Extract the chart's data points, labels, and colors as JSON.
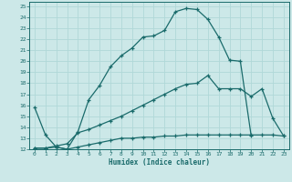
{
  "xlabel": "Humidex (Indice chaleur)",
  "bg_color": "#cce8e8",
  "line_color": "#1a6b6b",
  "grid_color": "#b0d8d8",
  "xlim": [
    -0.5,
    23.5
  ],
  "ylim": [
    12,
    25.4
  ],
  "xticks": [
    0,
    1,
    2,
    3,
    4,
    5,
    6,
    7,
    8,
    9,
    10,
    11,
    12,
    13,
    14,
    15,
    16,
    17,
    18,
    19,
    20,
    21,
    22,
    23
  ],
  "yticks": [
    12,
    13,
    14,
    15,
    16,
    17,
    18,
    19,
    20,
    21,
    22,
    23,
    24,
    25
  ],
  "line1_x": [
    0,
    1,
    2,
    3,
    4,
    5,
    6,
    7,
    8,
    9,
    10,
    11,
    12,
    13,
    14,
    15,
    16,
    17,
    18,
    19,
    20
  ],
  "line1_y": [
    15.8,
    13.3,
    12.2,
    12.0,
    13.6,
    16.5,
    17.8,
    19.5,
    20.5,
    21.2,
    22.2,
    22.3,
    22.8,
    24.5,
    24.8,
    24.7,
    23.8,
    22.2,
    20.1,
    20.0,
    13.2
  ],
  "line2_x": [
    0,
    1,
    2,
    3,
    4,
    5,
    6,
    7,
    8,
    9,
    10,
    11,
    12,
    13,
    14,
    15,
    16,
    17,
    18,
    19,
    20,
    21,
    22,
    23
  ],
  "line2_y": [
    12.1,
    12.1,
    12.2,
    12.0,
    12.2,
    12.4,
    12.6,
    12.8,
    13.0,
    13.0,
    13.1,
    13.1,
    13.2,
    13.2,
    13.3,
    13.3,
    13.3,
    13.3,
    13.3,
    13.3,
    13.3,
    13.3,
    13.3,
    13.2
  ],
  "line3_x": [
    0,
    1,
    2,
    3,
    4,
    5,
    6,
    7,
    8,
    9,
    10,
    11,
    12,
    13,
    14,
    15,
    16,
    17,
    18,
    19,
    20,
    21,
    22,
    23
  ],
  "line3_y": [
    12.1,
    12.1,
    12.3,
    12.5,
    13.5,
    13.8,
    14.2,
    14.6,
    15.0,
    15.5,
    16.0,
    16.5,
    17.0,
    17.5,
    17.9,
    18.0,
    18.7,
    17.5,
    17.5,
    17.5,
    16.8,
    17.5,
    14.8,
    13.2
  ]
}
